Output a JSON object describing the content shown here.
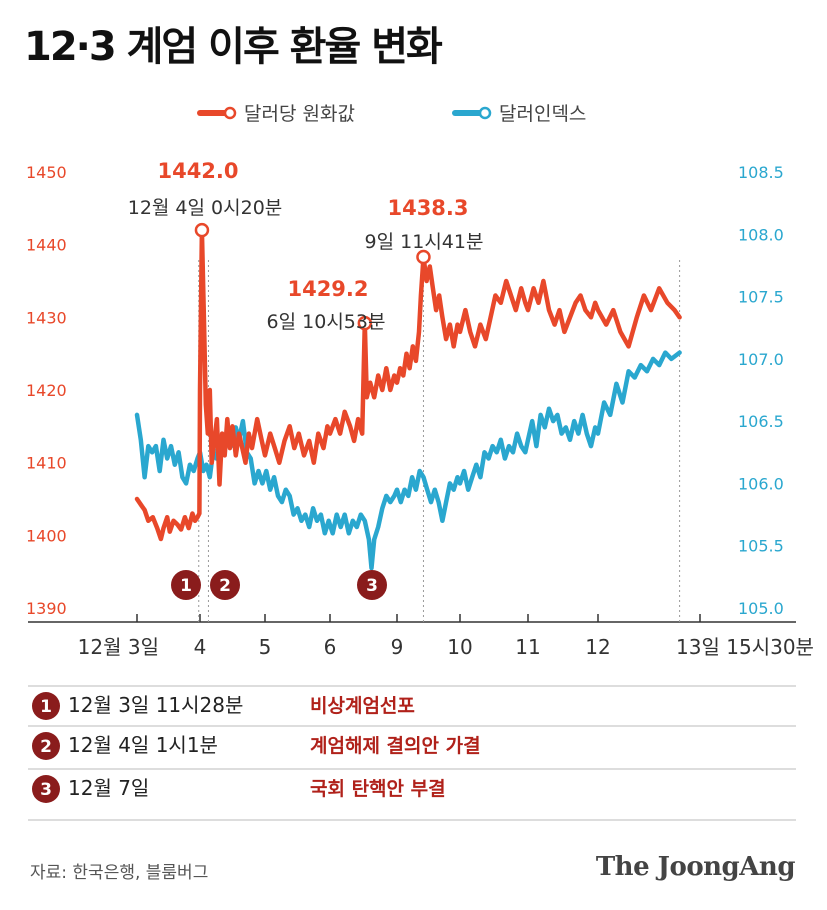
{
  "title": "12·3 계엄 이후 환율 변화",
  "legend": [
    {
      "label": "달러당 원화값",
      "color": "#e8482a"
    },
    {
      "label": "달러인덱스",
      "color": "#2aa7cf"
    }
  ],
  "chart_data": {
    "type": "line",
    "grid": false,
    "legend_position": "top-center",
    "left_axis": {
      "ticks": [
        "1450",
        "1440",
        "1430",
        "1420",
        "1410",
        "1400",
        "1390"
      ],
      "ylim": [
        1390,
        1450
      ]
    },
    "right_axis": {
      "ticks": [
        "108.5",
        "108.0",
        "107.5",
        "107.0",
        "106.5",
        "106.0",
        "105.5",
        "105.0"
      ],
      "ylim": [
        105.0,
        108.5
      ]
    },
    "x_ticks": [
      "12월 3일",
      "4",
      "5",
      "6",
      "9",
      "10",
      "11",
      "12",
      "13일 15시30분"
    ],
    "series": [
      {
        "name": "달러당 원화값",
        "axis": "left",
        "color": "#e8482a",
        "points": [
          [
            0.0,
            1405
          ],
          [
            0.08,
            1404
          ],
          [
            0.12,
            1403.5
          ],
          [
            0.18,
            1402
          ],
          [
            0.25,
            1402.5
          ],
          [
            0.32,
            1401
          ],
          [
            0.38,
            1399.5
          ],
          [
            0.42,
            1401
          ],
          [
            0.48,
            1402.5
          ],
          [
            0.52,
            1400.5
          ],
          [
            0.58,
            1402
          ],
          [
            0.64,
            1401.5
          ],
          [
            0.7,
            1400.8
          ],
          [
            0.76,
            1402.5
          ],
          [
            0.82,
            1401
          ],
          [
            0.88,
            1403
          ],
          [
            0.92,
            1402
          ],
          [
            0.96,
            1402.5
          ],
          [
            0.99,
            1403
          ],
          [
            1.0,
            1420
          ],
          [
            1.03,
            1442.0
          ],
          [
            1.06,
            1430
          ],
          [
            1.09,
            1418
          ],
          [
            1.12,
            1414
          ],
          [
            1.15,
            1420
          ],
          [
            1.18,
            1410
          ],
          [
            1.22,
            1413
          ],
          [
            1.26,
            1416
          ],
          [
            1.3,
            1407
          ],
          [
            1.34,
            1414
          ],
          [
            1.38,
            1411
          ],
          [
            1.42,
            1416
          ],
          [
            1.46,
            1412
          ],
          [
            1.5,
            1415
          ],
          [
            1.55,
            1411
          ],
          [
            1.6,
            1414
          ],
          [
            1.65,
            1412
          ],
          [
            1.7,
            1410
          ],
          [
            1.75,
            1414
          ],
          [
            1.8,
            1412
          ],
          [
            1.88,
            1416
          ],
          [
            1.95,
            1413
          ],
          [
            2.0,
            1411
          ],
          [
            2.08,
            1414
          ],
          [
            2.15,
            1412
          ],
          [
            2.22,
            1410
          ],
          [
            2.3,
            1413
          ],
          [
            2.38,
            1415
          ],
          [
            2.45,
            1412
          ],
          [
            2.52,
            1414
          ],
          [
            2.6,
            1411
          ],
          [
            2.68,
            1413
          ],
          [
            2.75,
            1410
          ],
          [
            2.82,
            1414
          ],
          [
            2.9,
            1412
          ],
          [
            2.96,
            1415
          ],
          [
            3.0,
            1414
          ],
          [
            3.08,
            1416
          ],
          [
            3.15,
            1414
          ],
          [
            3.22,
            1417
          ],
          [
            3.3,
            1415
          ],
          [
            3.36,
            1413
          ],
          [
            3.42,
            1416
          ],
          [
            3.48,
            1414
          ],
          [
            3.52,
            1429.2
          ],
          [
            3.55,
            1419
          ],
          [
            3.6,
            1421
          ],
          [
            3.66,
            1419
          ],
          [
            3.72,
            1422
          ],
          [
            3.78,
            1420
          ],
          [
            3.84,
            1423
          ],
          [
            3.9,
            1420
          ],
          [
            3.96,
            1422
          ],
          [
            4.0,
            1421
          ],
          [
            4.05,
            1423
          ],
          [
            4.1,
            1422
          ],
          [
            4.15,
            1425
          ],
          [
            4.2,
            1423
          ],
          [
            4.25,
            1426
          ],
          [
            4.3,
            1424
          ],
          [
            4.35,
            1428
          ],
          [
            4.38,
            1433
          ],
          [
            4.42,
            1438.3
          ],
          [
            4.47,
            1435
          ],
          [
            4.52,
            1437
          ],
          [
            4.57,
            1434
          ],
          [
            4.62,
            1431
          ],
          [
            4.67,
            1433
          ],
          [
            4.72,
            1430
          ],
          [
            4.78,
            1427
          ],
          [
            4.84,
            1429
          ],
          [
            4.9,
            1426
          ],
          [
            4.96,
            1429
          ],
          [
            5.0,
            1428
          ],
          [
            5.08,
            1431
          ],
          [
            5.15,
            1428
          ],
          [
            5.22,
            1426
          ],
          [
            5.3,
            1429
          ],
          [
            5.38,
            1427
          ],
          [
            5.45,
            1430
          ],
          [
            5.52,
            1433
          ],
          [
            5.6,
            1432
          ],
          [
            5.68,
            1435
          ],
          [
            5.75,
            1433
          ],
          [
            5.82,
            1431
          ],
          [
            5.9,
            1434
          ],
          [
            5.96,
            1432
          ],
          [
            6.0,
            1431
          ],
          [
            6.08,
            1434
          ],
          [
            6.15,
            1432
          ],
          [
            6.22,
            1435
          ],
          [
            6.3,
            1431
          ],
          [
            6.38,
            1429
          ],
          [
            6.45,
            1431
          ],
          [
            6.52,
            1428
          ],
          [
            6.6,
            1430
          ],
          [
            6.68,
            1432
          ],
          [
            6.75,
            1433
          ],
          [
            6.82,
            1431
          ],
          [
            6.9,
            1430
          ],
          [
            6.96,
            1432
          ],
          [
            7.0,
            1431
          ],
          [
            7.08,
            1429
          ],
          [
            7.15,
            1431
          ],
          [
            7.22,
            1428
          ],
          [
            7.3,
            1426
          ],
          [
            7.38,
            1430
          ],
          [
            7.45,
            1433
          ],
          [
            7.52,
            1431
          ],
          [
            7.6,
            1434
          ],
          [
            7.68,
            1432
          ],
          [
            7.75,
            1431
          ],
          [
            7.8,
            1430
          ]
        ]
      },
      {
        "name": "달러인덱스",
        "axis": "right",
        "color": "#2aa7cf",
        "points": [
          [
            0.0,
            106.55
          ],
          [
            0.06,
            106.35
          ],
          [
            0.12,
            106.05
          ],
          [
            0.18,
            106.3
          ],
          [
            0.24,
            106.25
          ],
          [
            0.3,
            106.3
          ],
          [
            0.36,
            106.1
          ],
          [
            0.42,
            106.35
          ],
          [
            0.48,
            106.2
          ],
          [
            0.54,
            106.3
          ],
          [
            0.6,
            106.15
          ],
          [
            0.66,
            106.25
          ],
          [
            0.72,
            106.05
          ],
          [
            0.78,
            106.0
          ],
          [
            0.84,
            106.15
          ],
          [
            0.9,
            106.1
          ],
          [
            0.96,
            106.2
          ],
          [
            1.0,
            106.25
          ],
          [
            1.05,
            106.1
          ],
          [
            1.1,
            106.15
          ],
          [
            1.15,
            106.05
          ],
          [
            1.2,
            106.25
          ],
          [
            1.25,
            106.2
          ],
          [
            1.3,
            106.35
          ],
          [
            1.36,
            106.25
          ],
          [
            1.42,
            106.4
          ],
          [
            1.48,
            106.3
          ],
          [
            1.55,
            106.45
          ],
          [
            1.6,
            106.35
          ],
          [
            1.66,
            106.5
          ],
          [
            1.72,
            106.25
          ],
          [
            1.78,
            106.2
          ],
          [
            1.84,
            106.0
          ],
          [
            1.9,
            106.1
          ],
          [
            1.96,
            106.0
          ],
          [
            2.02,
            106.1
          ],
          [
            2.08,
            105.95
          ],
          [
            2.14,
            106.05
          ],
          [
            2.2,
            105.9
          ],
          [
            2.26,
            105.85
          ],
          [
            2.32,
            105.95
          ],
          [
            2.38,
            105.9
          ],
          [
            2.44,
            105.75
          ],
          [
            2.5,
            105.8
          ],
          [
            2.56,
            105.7
          ],
          [
            2.62,
            105.75
          ],
          [
            2.68,
            105.65
          ],
          [
            2.74,
            105.8
          ],
          [
            2.8,
            105.7
          ],
          [
            2.86,
            105.75
          ],
          [
            2.92,
            105.6
          ],
          [
            2.98,
            105.7
          ],
          [
            3.04,
            105.6
          ],
          [
            3.1,
            105.75
          ],
          [
            3.16,
            105.65
          ],
          [
            3.22,
            105.75
          ],
          [
            3.28,
            105.6
          ],
          [
            3.34,
            105.7
          ],
          [
            3.4,
            105.65
          ],
          [
            3.46,
            105.75
          ],
          [
            3.52,
            105.7
          ],
          [
            3.58,
            105.55
          ],
          [
            3.62,
            105.32
          ],
          [
            3.66,
            105.55
          ],
          [
            3.72,
            105.65
          ],
          [
            3.78,
            105.8
          ],
          [
            3.84,
            105.9
          ],
          [
            3.9,
            105.85
          ],
          [
            3.96,
            105.9
          ],
          [
            4.0,
            105.95
          ],
          [
            4.06,
            105.85
          ],
          [
            4.12,
            105.95
          ],
          [
            4.18,
            105.9
          ],
          [
            4.24,
            106.05
          ],
          [
            4.3,
            105.95
          ],
          [
            4.36,
            106.1
          ],
          [
            4.42,
            106.05
          ],
          [
            4.48,
            105.95
          ],
          [
            4.54,
            105.85
          ],
          [
            4.6,
            105.95
          ],
          [
            4.66,
            105.85
          ],
          [
            4.72,
            105.7
          ],
          [
            4.78,
            105.85
          ],
          [
            4.84,
            106.0
          ],
          [
            4.9,
            105.95
          ],
          [
            4.96,
            106.05
          ],
          [
            5.0,
            106.0
          ],
          [
            5.06,
            106.1
          ],
          [
            5.12,
            105.95
          ],
          [
            5.18,
            106.05
          ],
          [
            5.24,
            106.15
          ],
          [
            5.3,
            106.05
          ],
          [
            5.36,
            106.25
          ],
          [
            5.42,
            106.2
          ],
          [
            5.48,
            106.3
          ],
          [
            5.54,
            106.25
          ],
          [
            5.6,
            106.35
          ],
          [
            5.66,
            106.2
          ],
          [
            5.72,
            106.3
          ],
          [
            5.78,
            106.25
          ],
          [
            5.84,
            106.4
          ],
          [
            5.9,
            106.3
          ],
          [
            5.96,
            106.25
          ],
          [
            6.0,
            106.35
          ],
          [
            6.06,
            106.5
          ],
          [
            6.12,
            106.3
          ],
          [
            6.18,
            106.55
          ],
          [
            6.24,
            106.45
          ],
          [
            6.3,
            106.6
          ],
          [
            6.36,
            106.5
          ],
          [
            6.42,
            106.55
          ],
          [
            6.48,
            106.4
          ],
          [
            6.54,
            106.45
          ],
          [
            6.6,
            106.35
          ],
          [
            6.66,
            106.5
          ],
          [
            6.72,
            106.4
          ],
          [
            6.78,
            106.55
          ],
          [
            6.84,
            106.4
          ],
          [
            6.9,
            106.3
          ],
          [
            6.96,
            106.45
          ],
          [
            7.0,
            106.4
          ],
          [
            7.06,
            106.65
          ],
          [
            7.12,
            106.55
          ],
          [
            7.18,
            106.8
          ],
          [
            7.24,
            106.65
          ],
          [
            7.3,
            106.9
          ],
          [
            7.36,
            106.85
          ],
          [
            7.42,
            106.95
          ],
          [
            7.48,
            106.9
          ],
          [
            7.54,
            107.0
          ],
          [
            7.6,
            106.95
          ],
          [
            7.66,
            107.05
          ],
          [
            7.72,
            107.0
          ],
          [
            7.8,
            107.05
          ]
        ]
      }
    ],
    "annotations": [
      {
        "series": "달러당 원화값",
        "x": 1.03,
        "y": 1442.0,
        "value": "1442.0",
        "time": "12월 4일 0시20분"
      },
      {
        "series": "달러당 원화값",
        "x": 3.52,
        "y": 1429.2,
        "value": "1429.2",
        "time": "6일 10시53분"
      },
      {
        "series": "달러당 원화값",
        "x": 4.42,
        "y": 1438.3,
        "value": "1438.3",
        "time": "9일 11시41분"
      }
    ],
    "markers": [
      {
        "num": "1",
        "x": 0.98
      },
      {
        "num": "2",
        "x": 1.13
      },
      {
        "num": "3",
        "x": 3.6
      }
    ]
  },
  "events": [
    {
      "num": "1",
      "date": "12월 3일 11시28분",
      "desc": "비상계엄선포"
    },
    {
      "num": "2",
      "date": "12월 4일 1시1분",
      "desc": "계엄해제 결의안 가결"
    },
    {
      "num": "3",
      "date": "12월 7일",
      "desc": "국회 탄핵안 부결"
    }
  ],
  "source": "자료: 한국은행, 블룸버그",
  "brand": "The JoongAng",
  "colors": {
    "marker": "#8a1c1c",
    "event_text": "#b0211a",
    "axis": "#333333"
  }
}
